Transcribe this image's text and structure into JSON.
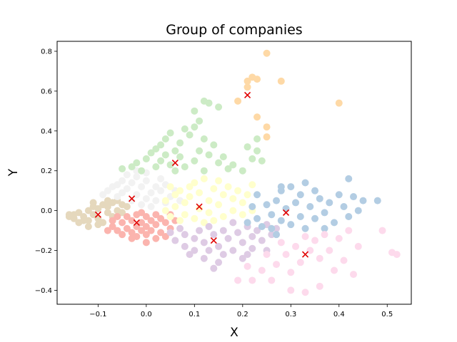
{
  "chart_data": {
    "type": "scatter",
    "title": "Group of companies",
    "xlabel": "X",
    "ylabel": "Y",
    "xlim": [
      -0.185,
      0.55
    ],
    "ylim": [
      -0.47,
      0.85
    ],
    "xticks": [
      -0.1,
      0.0,
      0.1,
      0.2,
      0.3,
      0.4,
      0.5
    ],
    "yticks": [
      -0.4,
      -0.2,
      0.0,
      0.2,
      0.4,
      0.6,
      0.8
    ],
    "xtick_labels": [
      "−0.1",
      "0.0",
      "0.1",
      "0.2",
      "0.3",
      "0.4",
      "0.5"
    ],
    "ytick_labels": [
      "−0.4",
      "−0.2",
      "0.0",
      "0.2",
      "0.4",
      "0.6",
      "0.8"
    ],
    "grid": false,
    "clusters": [
      {
        "color": "#e5d8bd",
        "center": [
          -0.1,
          -0.02
        ],
        "points": [
          [
            -0.16,
            -0.03
          ],
          [
            -0.15,
            -0.02
          ],
          [
            -0.14,
            -0.01
          ],
          [
            -0.13,
            -0.03
          ],
          [
            -0.12,
            0.0
          ],
          [
            -0.12,
            -0.05
          ],
          [
            -0.11,
            0.02
          ],
          [
            -0.11,
            -0.02
          ],
          [
            -0.1,
            -0.04
          ],
          [
            -0.1,
            0.01
          ],
          [
            -0.09,
            -0.06
          ],
          [
            -0.09,
            0.03
          ],
          [
            -0.08,
            -0.01
          ],
          [
            -0.08,
            0.02
          ],
          [
            -0.07,
            -0.03
          ],
          [
            -0.07,
            0.04
          ],
          [
            -0.06,
            0.0
          ],
          [
            -0.06,
            0.05
          ],
          [
            -0.05,
            0.03
          ],
          [
            -0.05,
            -0.01
          ],
          [
            -0.13,
            -0.05
          ],
          [
            -0.14,
            -0.06
          ],
          [
            -0.12,
            -0.08
          ],
          [
            -0.15,
            -0.04
          ],
          [
            -0.1,
            -0.07
          ],
          [
            -0.16,
            -0.02
          ],
          [
            -0.11,
            0.04
          ],
          [
            -0.08,
            0.05
          ],
          [
            -0.04,
            0.02
          ],
          [
            -0.07,
            -0.05
          ]
        ]
      },
      {
        "color": "#fbb4ae",
        "center": [
          -0.02,
          -0.06
        ],
        "points": [
          [
            -0.07,
            -0.08
          ],
          [
            -0.06,
            -0.1
          ],
          [
            -0.05,
            -0.06
          ],
          [
            -0.05,
            -0.12
          ],
          [
            -0.04,
            -0.03
          ],
          [
            -0.04,
            -0.09
          ],
          [
            -0.03,
            -0.05
          ],
          [
            -0.03,
            -0.11
          ],
          [
            -0.02,
            -0.02
          ],
          [
            -0.02,
            -0.08
          ],
          [
            -0.02,
            -0.13
          ],
          [
            -0.01,
            -0.06
          ],
          [
            -0.01,
            -0.1
          ],
          [
            0.0,
            -0.03
          ],
          [
            0.0,
            -0.08
          ],
          [
            0.0,
            -0.12
          ],
          [
            0.01,
            -0.05
          ],
          [
            0.01,
            -0.1
          ],
          [
            0.02,
            -0.02
          ],
          [
            0.02,
            -0.07
          ],
          [
            0.03,
            -0.04
          ],
          [
            0.03,
            -0.11
          ],
          [
            0.04,
            -0.06
          ],
          [
            0.05,
            -0.02
          ],
          [
            0.05,
            -0.09
          ],
          [
            -0.08,
            -0.1
          ],
          [
            -0.07,
            -0.05
          ],
          [
            0.0,
            -0.16
          ],
          [
            -0.03,
            -0.14
          ],
          [
            0.04,
            -0.13
          ],
          [
            -0.01,
            -0.01
          ],
          [
            0.06,
            -0.05
          ],
          [
            0.02,
            -0.14
          ],
          [
            -0.06,
            -0.03
          ]
        ]
      },
      {
        "color": "#f2f2f2",
        "center": [
          -0.03,
          0.06
        ],
        "points": [
          [
            -0.09,
            0.08
          ],
          [
            -0.08,
            0.1
          ],
          [
            -0.07,
            0.12
          ],
          [
            -0.06,
            0.07
          ],
          [
            -0.05,
            0.15
          ],
          [
            -0.05,
            0.09
          ],
          [
            -0.04,
            0.18
          ],
          [
            -0.04,
            0.11
          ],
          [
            -0.03,
            0.05
          ],
          [
            -0.03,
            0.14
          ],
          [
            -0.02,
            0.08
          ],
          [
            -0.02,
            0.17
          ],
          [
            -0.01,
            0.03
          ],
          [
            -0.01,
            0.12
          ],
          [
            0.0,
            0.06
          ],
          [
            0.0,
            0.15
          ],
          [
            0.01,
            0.09
          ],
          [
            0.01,
            0.02
          ],
          [
            0.02,
            0.12
          ],
          [
            0.02,
            0.05
          ],
          [
            0.03,
            0.1
          ],
          [
            0.03,
            0.16
          ],
          [
            0.04,
            0.04
          ],
          [
            0.04,
            0.13
          ],
          [
            0.05,
            0.07
          ],
          [
            0.06,
            0.1
          ],
          [
            0.07,
            0.05
          ],
          [
            -0.06,
            0.13
          ],
          [
            -0.02,
            0.2
          ],
          [
            0.0,
            0.19
          ]
        ]
      },
      {
        "color": "#ccebc5",
        "center": [
          0.06,
          0.24
        ],
        "points": [
          [
            -0.05,
            0.21
          ],
          [
            -0.03,
            0.22
          ],
          [
            -0.02,
            0.24
          ],
          [
            -0.01,
            0.2
          ],
          [
            0.0,
            0.26
          ],
          [
            0.01,
            0.29
          ],
          [
            0.02,
            0.22
          ],
          [
            0.02,
            0.31
          ],
          [
            0.03,
            0.25
          ],
          [
            0.03,
            0.33
          ],
          [
            0.04,
            0.28
          ],
          [
            0.04,
            0.36
          ],
          [
            0.05,
            0.23
          ],
          [
            0.05,
            0.39
          ],
          [
            0.06,
            0.3
          ],
          [
            0.06,
            0.2
          ],
          [
            0.07,
            0.34
          ],
          [
            0.07,
            0.27
          ],
          [
            0.08,
            0.41
          ],
          [
            0.08,
            0.22
          ],
          [
            0.09,
            0.38
          ],
          [
            0.1,
            0.25
          ],
          [
            0.1,
            0.42
          ],
          [
            0.11,
            0.3
          ],
          [
            0.12,
            0.36
          ],
          [
            0.12,
            0.2
          ],
          [
            0.13,
            0.28
          ],
          [
            0.14,
            0.33
          ],
          [
            0.15,
            0.24
          ],
          [
            0.16,
            0.27
          ],
          [
            0.17,
            0.21
          ],
          [
            0.18,
            0.23
          ],
          [
            0.2,
            0.2
          ],
          [
            0.22,
            0.26
          ],
          [
            0.23,
            0.3
          ],
          [
            0.24,
            0.25
          ],
          [
            0.21,
            0.32
          ],
          [
            0.23,
            0.36
          ],
          [
            0.11,
            0.45
          ],
          [
            0.1,
            0.5
          ],
          [
            0.12,
            0.55
          ],
          [
            0.13,
            0.54
          ],
          [
            0.15,
            0.52
          ]
        ]
      },
      {
        "color": "#fed9a6",
        "center": [
          0.21,
          0.58
        ],
        "points": [
          [
            0.25,
            0.79
          ],
          [
            0.22,
            0.67
          ],
          [
            0.21,
            0.65
          ],
          [
            0.21,
            0.62
          ],
          [
            0.23,
            0.66
          ],
          [
            0.28,
            0.65
          ],
          [
            0.19,
            0.55
          ],
          [
            0.23,
            0.47
          ],
          [
            0.25,
            0.42
          ],
          [
            0.25,
            0.37
          ],
          [
            0.4,
            0.54
          ]
        ]
      },
      {
        "color": "#ffffcc",
        "center": [
          0.11,
          0.02
        ],
        "points": [
          [
            0.04,
            0.0
          ],
          [
            0.04,
            0.05
          ],
          [
            0.05,
            -0.03
          ],
          [
            0.06,
            0.08
          ],
          [
            0.06,
            0.02
          ],
          [
            0.07,
            -0.05
          ],
          [
            0.07,
            0.1
          ],
          [
            0.08,
            0.04
          ],
          [
            0.08,
            -0.02
          ],
          [
            0.09,
            0.12
          ],
          [
            0.09,
            0.07
          ],
          [
            0.1,
            -0.04
          ],
          [
            0.1,
            0.14
          ],
          [
            0.11,
            0.01
          ],
          [
            0.11,
            0.09
          ],
          [
            0.12,
            -0.06
          ],
          [
            0.12,
            0.16
          ],
          [
            0.13,
            0.05
          ],
          [
            0.13,
            -0.01
          ],
          [
            0.14,
            0.11
          ],
          [
            0.15,
            0.03
          ],
          [
            0.15,
            0.15
          ],
          [
            0.16,
            -0.03
          ],
          [
            0.16,
            0.08
          ],
          [
            0.17,
            0.12
          ],
          [
            0.18,
            0.0
          ],
          [
            0.18,
            0.06
          ],
          [
            0.19,
            0.1
          ],
          [
            0.2,
            -0.02
          ],
          [
            0.2,
            0.04
          ],
          [
            0.21,
            0.08
          ],
          [
            0.22,
            0.0
          ],
          [
            0.22,
            0.13
          ],
          [
            0.05,
            0.12
          ],
          [
            0.14,
            -0.05
          ]
        ]
      },
      {
        "color": "#decbe4",
        "center": [
          0.14,
          -0.15
        ],
        "points": [
          [
            0.05,
            -0.11
          ],
          [
            0.06,
            -0.15
          ],
          [
            0.07,
            -0.09
          ],
          [
            0.08,
            -0.18
          ],
          [
            0.08,
            -0.12
          ],
          [
            0.09,
            -0.22
          ],
          [
            0.1,
            -0.14
          ],
          [
            0.1,
            -0.2
          ],
          [
            0.11,
            -0.1
          ],
          [
            0.12,
            -0.24
          ],
          [
            0.12,
            -0.16
          ],
          [
            0.13,
            -0.08
          ],
          [
            0.13,
            -0.2
          ],
          [
            0.14,
            -0.12
          ],
          [
            0.15,
            -0.26
          ],
          [
            0.15,
            -0.18
          ],
          [
            0.16,
            -0.1
          ],
          [
            0.16,
            -0.22
          ],
          [
            0.17,
            -0.14
          ],
          [
            0.18,
            -0.06
          ],
          [
            0.18,
            -0.2
          ],
          [
            0.19,
            -0.11
          ],
          [
            0.2,
            -0.16
          ],
          [
            0.2,
            -0.24
          ],
          [
            0.21,
            -0.08
          ],
          [
            0.22,
            -0.13
          ],
          [
            0.22,
            -0.19
          ],
          [
            0.23,
            -0.1
          ],
          [
            0.24,
            -0.15
          ],
          [
            0.25,
            -0.07
          ],
          [
            0.25,
            -0.2
          ],
          [
            0.26,
            -0.12
          ],
          [
            0.27,
            -0.09
          ],
          [
            0.14,
            -0.29
          ],
          [
            0.21,
            -0.22
          ]
        ]
      },
      {
        "color": "#b3cde3",
        "center": [
          0.29,
          -0.01
        ],
        "points": [
          [
            0.21,
            -0.06
          ],
          [
            0.22,
            0.02
          ],
          [
            0.23,
            -0.04
          ],
          [
            0.23,
            0.08
          ],
          [
            0.24,
            -0.08
          ],
          [
            0.25,
            0.03
          ],
          [
            0.26,
            -0.02
          ],
          [
            0.26,
            -0.09
          ],
          [
            0.27,
            0.05
          ],
          [
            0.28,
            -0.05
          ],
          [
            0.28,
            0.1
          ],
          [
            0.29,
            0.01
          ],
          [
            0.3,
            -0.07
          ],
          [
            0.3,
            0.12
          ],
          [
            0.31,
            0.04
          ],
          [
            0.32,
            -0.03
          ],
          [
            0.32,
            0.08
          ],
          [
            0.33,
            -0.09
          ],
          [
            0.34,
            0.02
          ],
          [
            0.35,
            0.1
          ],
          [
            0.35,
            -0.04
          ],
          [
            0.36,
            0.06
          ],
          [
            0.37,
            -0.01
          ],
          [
            0.38,
            0.04
          ],
          [
            0.39,
            -0.06
          ],
          [
            0.4,
            0.08
          ],
          [
            0.41,
            0.02
          ],
          [
            0.42,
            0.16
          ],
          [
            0.42,
            -0.03
          ],
          [
            0.43,
            0.07
          ],
          [
            0.44,
            0.0
          ],
          [
            0.45,
            0.05
          ],
          [
            0.48,
            0.05
          ],
          [
            0.33,
            0.14
          ],
          [
            0.28,
            0.12
          ],
          [
            0.37,
            -0.09
          ],
          [
            0.27,
            -0.12
          ]
        ]
      },
      {
        "color": "#fddaec",
        "center": [
          0.33,
          -0.22
        ],
        "points": [
          [
            0.22,
            -0.35
          ],
          [
            0.24,
            -0.3
          ],
          [
            0.25,
            -0.22
          ],
          [
            0.26,
            -0.35
          ],
          [
            0.27,
            -0.27
          ],
          [
            0.28,
            -0.16
          ],
          [
            0.29,
            -0.22
          ],
          [
            0.3,
            -0.31
          ],
          [
            0.3,
            -0.4
          ],
          [
            0.31,
            -0.18
          ],
          [
            0.32,
            -0.26
          ],
          [
            0.33,
            -0.13
          ],
          [
            0.33,
            -0.41
          ],
          [
            0.34,
            -0.2
          ],
          [
            0.35,
            -0.15
          ],
          [
            0.36,
            -0.24
          ],
          [
            0.37,
            -0.12
          ],
          [
            0.38,
            -0.2
          ],
          [
            0.39,
            -0.3
          ],
          [
            0.4,
            -0.14
          ],
          [
            0.41,
            -0.25
          ],
          [
            0.42,
            -0.1
          ],
          [
            0.43,
            -0.32
          ],
          [
            0.44,
            -0.18
          ],
          [
            0.49,
            -0.1
          ],
          [
            0.51,
            -0.21
          ],
          [
            0.52,
            -0.22
          ],
          [
            0.36,
            -0.38
          ],
          [
            0.19,
            -0.35
          ],
          [
            0.21,
            -0.28
          ]
        ]
      }
    ]
  }
}
